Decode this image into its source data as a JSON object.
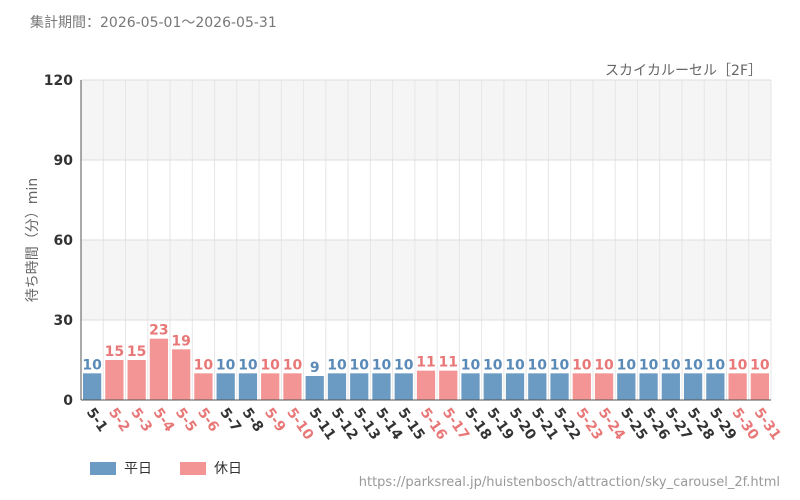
{
  "header": {
    "period": "集計期間：2026-05-01～2026-05-31"
  },
  "footer": {
    "url": "https://parksreal.jp/huistenbosch/attraction/sky_carousel_2f.html"
  },
  "legend": {
    "weekday": "平日",
    "holiday": "休日"
  },
  "colors": {
    "weekday": "#6b9bc3",
    "holiday": "#f49595",
    "weekday_text": "#5a8ab8",
    "holiday_text": "#e87878"
  },
  "chart_data": {
    "type": "bar",
    "title": "スカイカルーセル［2F］",
    "ylabel": "待ち時間（分）min",
    "xlabel": "",
    "ylim": [
      0,
      120
    ],
    "yticks": [
      0,
      30,
      60,
      90,
      120
    ],
    "grid": true,
    "legend_position": "bottom-left",
    "categories": [
      "5-1",
      "5-2",
      "5-3",
      "5-4",
      "5-5",
      "5-6",
      "5-7",
      "5-8",
      "5-9",
      "5-10",
      "5-11",
      "5-12",
      "5-13",
      "5-14",
      "5-15",
      "5-16",
      "5-17",
      "5-18",
      "5-19",
      "5-20",
      "5-21",
      "5-22",
      "5-23",
      "5-24",
      "5-25",
      "5-26",
      "5-27",
      "5-28",
      "5-29",
      "5-30",
      "5-31"
    ],
    "values": [
      10,
      15,
      15,
      23,
      19,
      10,
      10,
      10,
      10,
      10,
      9,
      10,
      10,
      10,
      10,
      11,
      11,
      10,
      10,
      10,
      10,
      10,
      10,
      10,
      10,
      10,
      10,
      10,
      10,
      10,
      10
    ],
    "day_type": [
      "weekday",
      "holiday",
      "holiday",
      "holiday",
      "holiday",
      "holiday",
      "weekday",
      "weekday",
      "holiday",
      "holiday",
      "weekday",
      "weekday",
      "weekday",
      "weekday",
      "weekday",
      "holiday",
      "holiday",
      "weekday",
      "weekday",
      "weekday",
      "weekday",
      "weekday",
      "holiday",
      "holiday",
      "weekday",
      "weekday",
      "weekday",
      "weekday",
      "weekday",
      "holiday",
      "holiday"
    ]
  }
}
